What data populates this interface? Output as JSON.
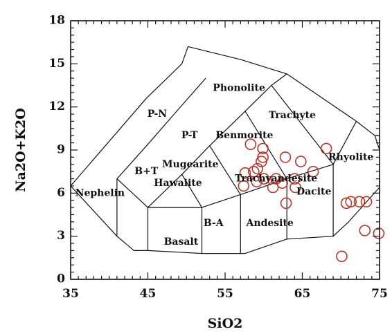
{
  "chart_data": {
    "type": "scatter",
    "title": "",
    "xlabel": "SiO2",
    "ylabel": "Na2O+K2O",
    "xlim": [
      35,
      75
    ],
    "ylim": [
      0,
      18
    ],
    "x_ticks": [
      35,
      45,
      55,
      65,
      75
    ],
    "y_ticks": [
      0,
      3,
      6,
      9,
      12,
      15,
      18
    ],
    "grid": false,
    "legend": "none",
    "marker": "open-circle",
    "point_color": "#b5352a",
    "field_boundaries": [
      [
        [
          41,
          3.0
        ],
        [
          43.2,
          2.0
        ],
        [
          45,
          2.0
        ],
        [
          52,
          1.8
        ],
        [
          57.6,
          1.8
        ],
        [
          63,
          2.8
        ],
        [
          69,
          3.0
        ],
        [
          71,
          4.0
        ],
        [
          75,
          6.4
        ],
        [
          75,
          9.0
        ],
        [
          74.4,
          10.0
        ],
        [
          72,
          11.0
        ],
        [
          63,
          14.3
        ],
        [
          57,
          15.3
        ],
        [
          50.2,
          16.2
        ],
        [
          49.4,
          15.0
        ],
        [
          44.8,
          12.6
        ],
        [
          35,
          6.5
        ],
        [
          41,
          3.0
        ]
      ],
      [
        [
          41,
          3.0
        ],
        [
          41,
          7.0
        ],
        [
          45,
          9.4
        ],
        [
          48.4,
          11.5
        ],
        [
          52.5,
          14.0
        ]
      ],
      [
        [
          41,
          7.0
        ],
        [
          45,
          5.0
        ],
        [
          49.4,
          7.3
        ],
        [
          53,
          9.3
        ],
        [
          57.6,
          11.7
        ],
        [
          61,
          13.5
        ],
        [
          63,
          14.3
        ]
      ],
      [
        [
          45,
          2.0
        ],
        [
          45,
          5.0
        ]
      ],
      [
        [
          45,
          5.0
        ],
        [
          52,
          5.0
        ],
        [
          57,
          5.9
        ],
        [
          63,
          7.0
        ],
        [
          69,
          8.0
        ]
      ],
      [
        [
          52,
          1.8
        ],
        [
          52,
          5.0
        ]
      ],
      [
        [
          57,
          1.8
        ],
        [
          57,
          5.9
        ]
      ],
      [
        [
          63,
          2.8
        ],
        [
          63,
          7.0
        ]
      ],
      [
        [
          69,
          3.0
        ],
        [
          69,
          8.0
        ]
      ],
      [
        [
          49.4,
          7.3
        ],
        [
          52,
          5.0
        ]
      ],
      [
        [
          53,
          9.3
        ],
        [
          57,
          5.9
        ]
      ],
      [
        [
          57.6,
          11.7
        ],
        [
          63,
          7.0
        ]
      ],
      [
        [
          61,
          13.5
        ],
        [
          69,
          8.0
        ],
        [
          72,
          11.0
        ]
      ],
      [
        [
          74.4,
          10.0
        ],
        [
          75,
          10.0
        ]
      ]
    ],
    "field_names": [
      {
        "text": "Phonolite",
        "x": 56.8,
        "y": 13.3
      },
      {
        "text": "P-N",
        "x": 46.2,
        "y": 11.5
      },
      {
        "text": "Trachyte",
        "x": 63.7,
        "y": 11.4
      },
      {
        "text": "P-T",
        "x": 50.4,
        "y": 10.0
      },
      {
        "text": "Benmorite",
        "x": 57.5,
        "y": 10.0
      },
      {
        "text": "Rhyolite",
        "x": 71.3,
        "y": 8.5
      },
      {
        "text": "Mugearite",
        "x": 50.5,
        "y": 8.0
      },
      {
        "text": "B+T",
        "x": 44.8,
        "y": 7.5
      },
      {
        "text": "Trachyandesite",
        "x": 61.6,
        "y": 7.0
      },
      {
        "text": "Hawaiite",
        "x": 48.9,
        "y": 6.7
      },
      {
        "text": "Dacite",
        "x": 66.5,
        "y": 6.1
      },
      {
        "text": "Nephelin",
        "x": 38.8,
        "y": 6.0
      },
      {
        "text": "Andesite",
        "x": 60.8,
        "y": 3.9
      },
      {
        "text": "B-A",
        "x": 53.5,
        "y": 3.9
      },
      {
        "text": "Basalt",
        "x": 49.3,
        "y": 2.6
      }
    ],
    "series": [
      {
        "points": [
          [
            58.3,
            9.4
          ],
          [
            59.9,
            9.1
          ],
          [
            59.9,
            8.5
          ],
          [
            59.7,
            8.2
          ],
          [
            59.2,
            7.7
          ],
          [
            58.7,
            7.5
          ],
          [
            57.6,
            7.4
          ],
          [
            60.0,
            7.0
          ],
          [
            61.6,
            7.0
          ],
          [
            59.1,
            6.8
          ],
          [
            62.4,
            6.7
          ],
          [
            64.0,
            7.0
          ],
          [
            57.4,
            6.5
          ],
          [
            61.2,
            6.4
          ],
          [
            62.8,
            8.5
          ],
          [
            64.8,
            8.2
          ],
          [
            66.4,
            7.5
          ],
          [
            68.1,
            9.1
          ],
          [
            64.1,
            6.4
          ],
          [
            62.9,
            5.3
          ],
          [
            70.7,
            5.3
          ],
          [
            71.3,
            5.4
          ],
          [
            72.4,
            5.4
          ],
          [
            73.3,
            5.4
          ],
          [
            73.1,
            3.4
          ],
          [
            74.9,
            3.2
          ],
          [
            70.1,
            1.6
          ]
        ]
      }
    ]
  }
}
